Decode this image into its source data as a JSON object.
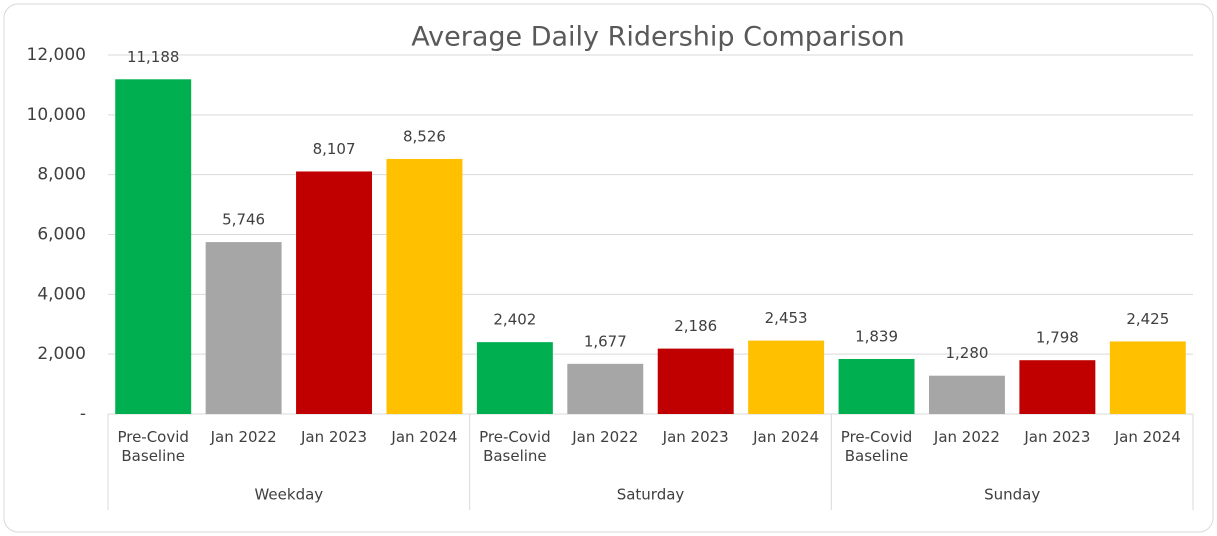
{
  "chart_data": {
    "type": "bar",
    "title": "Average Daily Ridership Comparison",
    "groups": [
      "Weekday",
      "Saturday",
      "Sunday"
    ],
    "series": [
      {
        "name": "Pre-Covid Baseline",
        "color": "#00b050",
        "values": [
          11188,
          2402,
          1839
        ],
        "value_labels": [
          "11,188",
          "2,402",
          "1,839"
        ]
      },
      {
        "name": "Jan 2022",
        "color": "#a6a6a6",
        "values": [
          5746,
          1677,
          1280
        ],
        "value_labels": [
          "5,746",
          "1,677",
          "1,280"
        ]
      },
      {
        "name": "Jan 2023",
        "color": "#c00000",
        "values": [
          8107,
          2186,
          1798
        ],
        "value_labels": [
          "8,107",
          "2,186",
          "1,798"
        ]
      },
      {
        "name": "Jan 2024",
        "color": "#ffc000",
        "values": [
          8526,
          2453,
          2425
        ],
        "value_labels": [
          "8,526",
          "2,453",
          "2,425"
        ]
      }
    ],
    "ylim": [
      0,
      12000
    ],
    "yticks": [
      {
        "value": 0,
        "label": "-"
      },
      {
        "value": 2000,
        "label": "2,000"
      },
      {
        "value": 4000,
        "label": "4,000"
      },
      {
        "value": 6000,
        "label": "6,000"
      },
      {
        "value": 8000,
        "label": "8,000"
      },
      {
        "value": 10000,
        "label": "10,000"
      },
      {
        "value": 12000,
        "label": "12,000"
      }
    ],
    "grid": true
  }
}
